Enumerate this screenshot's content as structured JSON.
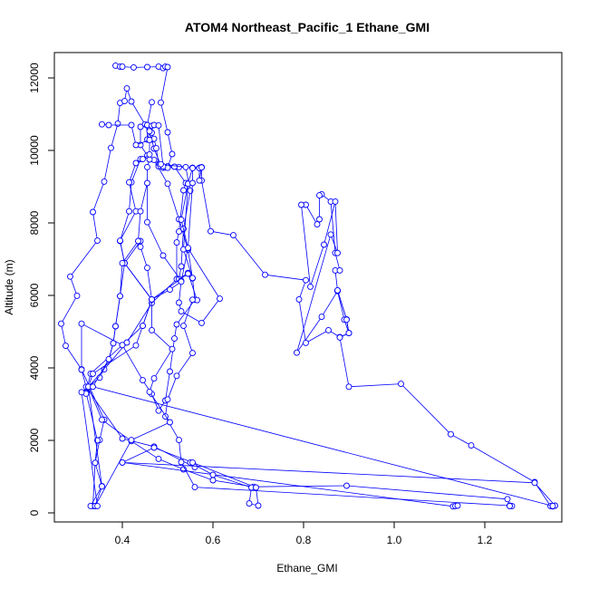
{
  "chart_data": {
    "type": "line",
    "title": "ATOM4 Northeast_Pacific_1 Ethane_GMI",
    "xlabel": "Ethane_GMI",
    "ylabel": "Altitude (m)",
    "xlim": [
      0.25,
      1.37
    ],
    "ylim": [
      -250,
      12700
    ],
    "xticks": [
      0.4,
      0.6,
      0.8,
      1.0,
      1.2
    ],
    "xtick_labels": [
      "0.4",
      "0.6",
      "0.8",
      "1.0",
      "1.2"
    ],
    "yticks": [
      0,
      2000,
      4000,
      6000,
      8000,
      10000,
      12000
    ],
    "ytick_labels": [
      "0",
      "2000",
      "4000",
      "6000",
      "8000",
      "10000",
      "12000"
    ],
    "series_color": "#0000ff",
    "series": [
      {
        "points": [
          [
            0.335,
            190
          ],
          [
            0.34,
            1380
          ],
          [
            0.35,
            2010
          ],
          [
            0.36,
            2570
          ],
          [
            0.31,
            3960
          ],
          [
            0.275,
            4610
          ],
          [
            0.265,
            5220
          ],
          [
            0.3,
            5990
          ],
          [
            0.285,
            6520
          ],
          [
            0.345,
            7510
          ],
          [
            0.335,
            8300
          ],
          [
            0.36,
            9140
          ],
          [
            0.375,
            10070
          ],
          [
            0.39,
            10740
          ],
          [
            0.395,
            11310
          ],
          [
            0.405,
            11360
          ],
          [
            0.41,
            11710
          ],
          [
            0.42,
            11350
          ],
          [
            0.45,
            10720
          ],
          [
            0.465,
            10300
          ],
          [
            0.47,
            10050
          ],
          [
            0.485,
            9590
          ],
          [
            0.49,
            9520
          ],
          [
            0.525,
            9540
          ],
          [
            0.555,
            9520
          ],
          [
            0.575,
            9530
          ],
          [
            0.575,
            9170
          ],
          [
            0.595,
            7770
          ],
          [
            0.645,
            7660
          ],
          [
            0.715,
            6570
          ],
          [
            0.805,
            6420
          ],
          [
            0.79,
            5890
          ],
          [
            0.805,
            4690
          ],
          [
            0.855,
            5040
          ],
          [
            0.88,
            4850
          ],
          [
            0.9,
            4960
          ],
          [
            0.895,
            5340
          ],
          [
            0.875,
            6140
          ],
          [
            0.87,
            6690
          ],
          [
            0.88,
            6690
          ],
          [
            0.87,
            7170
          ],
          [
            0.86,
            8590
          ],
          [
            0.84,
            8790
          ],
          [
            0.835,
            8760
          ],
          [
            0.835,
            8100
          ],
          [
            0.83,
            7960
          ],
          [
            0.805,
            8500
          ],
          [
            0.795,
            8500
          ],
          [
            0.815,
            6240
          ],
          [
            0.845,
            7400
          ],
          [
            0.87,
            8590
          ],
          [
            0.875,
            7170
          ],
          [
            0.86,
            7680
          ],
          [
            0.785,
            4420
          ],
          [
            0.84,
            5410
          ],
          [
            0.875,
            6120
          ],
          [
            0.89,
            5330
          ],
          [
            0.9,
            4960
          ]
        ]
      },
      {
        "points": [
          [
            0.33,
            190
          ],
          [
            0.355,
            740
          ],
          [
            0.34,
            1380
          ],
          [
            0.345,
            2000
          ],
          [
            0.32,
            3320
          ],
          [
            0.33,
            3840
          ],
          [
            0.4,
            4630
          ],
          [
            0.445,
            5160
          ],
          [
            0.465,
            5890
          ],
          [
            0.405,
            6890
          ],
          [
            0.395,
            7500
          ],
          [
            0.415,
            8320
          ],
          [
            0.42,
            9120
          ],
          [
            0.44,
            9760
          ],
          [
            0.455,
            9860
          ],
          [
            0.44,
            10150
          ],
          [
            0.44,
            10650
          ],
          [
            0.455,
            10690
          ],
          [
            0.46,
            10590
          ],
          [
            0.465,
            10490
          ],
          [
            0.47,
            10320
          ],
          [
            0.475,
            10060
          ],
          [
            0.48,
            9600
          ],
          [
            0.48,
            9560
          ],
          [
            0.495,
            9530
          ],
          [
            0.5,
            9560
          ],
          [
            0.515,
            9550
          ],
          [
            0.54,
            9100
          ],
          [
            0.535,
            8900
          ],
          [
            0.525,
            7760
          ],
          [
            0.52,
            7460
          ],
          [
            0.52,
            6450
          ],
          [
            0.465,
            5790
          ],
          [
            0.41,
            4700
          ],
          [
            0.36,
            3960
          ],
          [
            0.325,
            3480
          ],
          [
            0.355,
            2570
          ],
          [
            0.42,
            1980
          ],
          [
            0.48,
            1490
          ],
          [
            0.535,
            1200
          ],
          [
            0.6,
            900
          ],
          [
            0.69,
            720
          ],
          [
            0.895,
            750
          ],
          [
            1.25,
            380
          ],
          [
            1.255,
            190
          ],
          [
            1.26,
            190
          ]
        ]
      },
      {
        "points": [
          [
            0.385,
            12340
          ],
          [
            0.395,
            12310
          ],
          [
            0.4,
            12310
          ],
          [
            0.425,
            12290
          ],
          [
            0.455,
            12300
          ],
          [
            0.48,
            12310
          ],
          [
            0.49,
            12270
          ],
          [
            0.495,
            12310
          ],
          [
            0.5,
            12300
          ],
          [
            0.485,
            11320
          ],
          [
            0.5,
            10500
          ],
          [
            0.51,
            9900
          ],
          [
            0.5,
            9520
          ],
          [
            0.47,
            9740
          ],
          [
            0.5,
            9080
          ],
          [
            0.525,
            8100
          ],
          [
            0.545,
            7260
          ],
          [
            0.555,
            6470
          ],
          [
            0.56,
            5880
          ],
          [
            0.52,
            5200
          ],
          [
            0.515,
            4810
          ],
          [
            0.505,
            3900
          ],
          [
            0.495,
            3100
          ],
          [
            0.48,
            2820
          ],
          [
            0.465,
            3280
          ],
          [
            0.445,
            3660
          ],
          [
            0.4,
            4630
          ],
          [
            0.31,
            5220
          ],
          [
            0.31,
            3950
          ],
          [
            0.32,
            3480
          ],
          [
            0.4,
            2050
          ],
          [
            0.47,
            1830
          ],
          [
            0.56,
            1260
          ],
          [
            0.55,
            1390
          ],
          [
            0.6,
            1050
          ],
          [
            0.685,
            700
          ],
          [
            0.68,
            260
          ],
          [
            0.7,
            200
          ],
          [
            0.695,
            700
          ],
          [
            0.555,
            1390
          ],
          [
            0.47,
            1800
          ],
          [
            0.4,
            1390
          ],
          [
            1.13,
            180
          ],
          [
            1.135,
            190
          ],
          [
            1.14,
            200
          ]
        ]
      },
      {
        "points": [
          [
            0.465,
            11330
          ],
          [
            0.455,
            10700
          ],
          [
            0.455,
            10300
          ],
          [
            0.46,
            10530
          ],
          [
            0.465,
            10680
          ],
          [
            0.47,
            10700
          ],
          [
            0.48,
            10690
          ],
          [
            0.49,
            9560
          ],
          [
            0.485,
            9620
          ],
          [
            0.54,
            9540
          ],
          [
            0.55,
            8890
          ],
          [
            0.535,
            7840
          ],
          [
            0.53,
            6800
          ],
          [
            0.525,
            6450
          ],
          [
            0.545,
            6620
          ],
          [
            0.565,
            5870
          ],
          [
            0.555,
            5880
          ],
          [
            0.535,
            5160
          ],
          [
            0.555,
            4410
          ],
          [
            0.52,
            3780
          ],
          [
            0.5,
            3130
          ],
          [
            0.495,
            2660
          ],
          [
            0.525,
            2010
          ],
          [
            0.53,
            1400
          ],
          [
            0.56,
            710
          ],
          [
            1.255,
            200
          ],
          [
            1.255,
            190
          ]
        ]
      },
      {
        "points": [
          [
            0.355,
            10720
          ],
          [
            0.37,
            10700
          ],
          [
            0.42,
            10700
          ],
          [
            0.43,
            10150
          ],
          [
            0.46,
            10290
          ],
          [
            0.46,
            9750
          ],
          [
            0.455,
            9540
          ],
          [
            0.455,
            8020
          ],
          [
            0.49,
            7100
          ],
          [
            0.53,
            6400
          ],
          [
            0.525,
            5800
          ],
          [
            0.53,
            5560
          ],
          [
            0.575,
            5240
          ],
          [
            0.615,
            5910
          ],
          [
            0.545,
            7300
          ],
          [
            0.53,
            8090
          ],
          [
            0.545,
            9080
          ],
          [
            0.555,
            9520
          ],
          [
            0.57,
            9520
          ],
          [
            0.57,
            9170
          ],
          [
            0.575,
            9540
          ]
        ]
      },
      {
        "points": [
          [
            0.34,
            190
          ],
          [
            0.355,
            730
          ],
          [
            0.325,
            3480
          ],
          [
            0.32,
            3290
          ],
          [
            0.335,
            3840
          ],
          [
            0.43,
            4620
          ],
          [
            0.445,
            5160
          ],
          [
            0.465,
            5890
          ],
          [
            0.545,
            6600
          ],
          [
            0.555,
            6480
          ],
          [
            0.535,
            7270
          ],
          [
            0.545,
            9080
          ]
        ]
      },
      {
        "points": [
          [
            0.34,
            190
          ],
          [
            0.42,
            2010
          ],
          [
            0.505,
            2500
          ],
          [
            0.46,
            3340
          ],
          [
            0.47,
            3710
          ],
          [
            0.51,
            4520
          ],
          [
            0.465,
            5040
          ],
          [
            0.465,
            5880
          ],
          [
            0.405,
            6890
          ],
          [
            0.395,
            7510
          ],
          [
            0.43,
            8320
          ],
          [
            0.415,
            9120
          ],
          [
            0.43,
            9650
          ],
          [
            0.445,
            9760
          ],
          [
            0.46,
            9890
          ]
        ]
      },
      {
        "points": [
          [
            0.345,
            190
          ],
          [
            0.31,
            3330
          ],
          [
            0.325,
            3480
          ],
          [
            0.35,
            3730
          ],
          [
            0.37,
            4230
          ],
          [
            0.38,
            4680
          ],
          [
            0.385,
            5150
          ],
          [
            0.395,
            5980
          ],
          [
            0.405,
            6890
          ],
          [
            0.44,
            7500
          ],
          [
            0.44,
            7340
          ],
          [
            0.455,
            6760
          ],
          [
            0.465,
            5890
          ],
          [
            0.505,
            6160
          ],
          [
            0.53,
            6380
          ],
          [
            0.545,
            7310
          ],
          [
            0.555,
            9100
          ],
          [
            0.555,
            9510
          ],
          [
            0.57,
            9510
          ],
          [
            0.575,
            9530
          ]
        ]
      },
      {
        "points": [
          [
            1.345,
            190
          ],
          [
            1.31,
            850
          ],
          [
            1.17,
            1860
          ],
          [
            1.125,
            2170
          ],
          [
            1.015,
            3560
          ],
          [
            0.9,
            3480
          ],
          [
            0.88,
            4840
          ],
          [
            0.9,
            4960
          ],
          [
            0.895,
            5330
          ],
          [
            0.875,
            6140
          ]
        ]
      },
      {
        "points": [
          [
            1.35,
            180
          ],
          [
            1.355,
            200
          ],
          [
            1.31,
            830
          ],
          [
            0.4,
            1390
          ]
        ]
      },
      {
        "points": [
          [
            1.35,
            190
          ],
          [
            0.335,
            3480
          ],
          [
            0.37,
            4240
          ],
          [
            0.38,
            4680
          ],
          [
            0.385,
            5150
          ],
          [
            0.395,
            5980
          ],
          [
            0.4,
            6890
          ],
          [
            0.435,
            7500
          ],
          [
            0.44,
            8320
          ],
          [
            0.455,
            9100
          ]
        ]
      }
    ]
  }
}
